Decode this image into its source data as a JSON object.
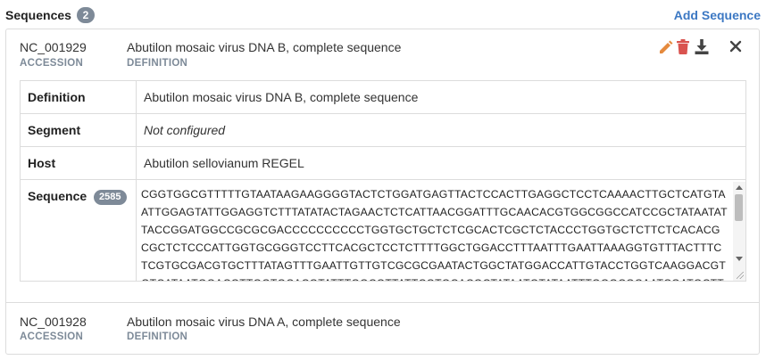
{
  "header": {
    "title": "Sequences",
    "count": "2",
    "add_label": "Add Sequence"
  },
  "colors": {
    "accent": "#3c78c3",
    "badge": "#7e8a98",
    "edit_icon": "#e58a3d",
    "delete_icon": "#d9534f",
    "muted_label": "#7d8a98"
  },
  "sequences": [
    {
      "accession": "NC_001929",
      "accession_label": "ACCESSION",
      "definition": "Abutilon mosaic virus DNA B, complete sequence",
      "definition_label": "DEFINITION",
      "icons": [
        "pencil-icon",
        "trash-icon",
        "download-icon",
        "close-icon"
      ],
      "details": {
        "definition_key": "Definition",
        "definition_value": "Abutilon mosaic virus DNA B, complete sequence",
        "segment_key": "Segment",
        "segment_value": "Not configured",
        "host_key": "Host",
        "host_value": "Abutilon sellovianum REGEL",
        "sequence_key": "Sequence",
        "sequence_length": "2585",
        "sequence": "CGGTGGCGTTTTTGTAATAAGAAGGGGTACTCTGGATGAGTTACTCCACTTGAGGCTCCTCAAAACTTGCTCATGTAATTGGAGTATTGGAGGTCTTTATATACTAGAACTCTCATTAACGGATTTGCAACACGTGGCGGCCATCCGCTATAATATTACCGGATGGCCGCGCGACCCCCCCCCCTGGTGCTGCTCTCGCACTCGCTCTACCCTGGTGCTCTTCTCACACGCGCTCTCCCATTGGTGCGGGTCCTTCACGCTCCTCTTTTGGCTGGACCTTTAATTTGAATTAAAGGTGTTTACTTTCTCGTGCGACGTGCTTTATAGTTTGAATTGTTGTCGCGCGAATACTGGCTATGGACCATTGTACCTGGTCAAGGACGTGTCATAATGGACGTTGGTGCACGTATTTGGCGTTATTCGTGCACGCTATAATGTATAATTTGGGCGCAATCGATGCTT"
      }
    },
    {
      "accession": "NC_001928",
      "accession_label": "ACCESSION",
      "definition": "Abutilon mosaic virus DNA A, complete sequence",
      "definition_label": "DEFINITION"
    }
  ]
}
